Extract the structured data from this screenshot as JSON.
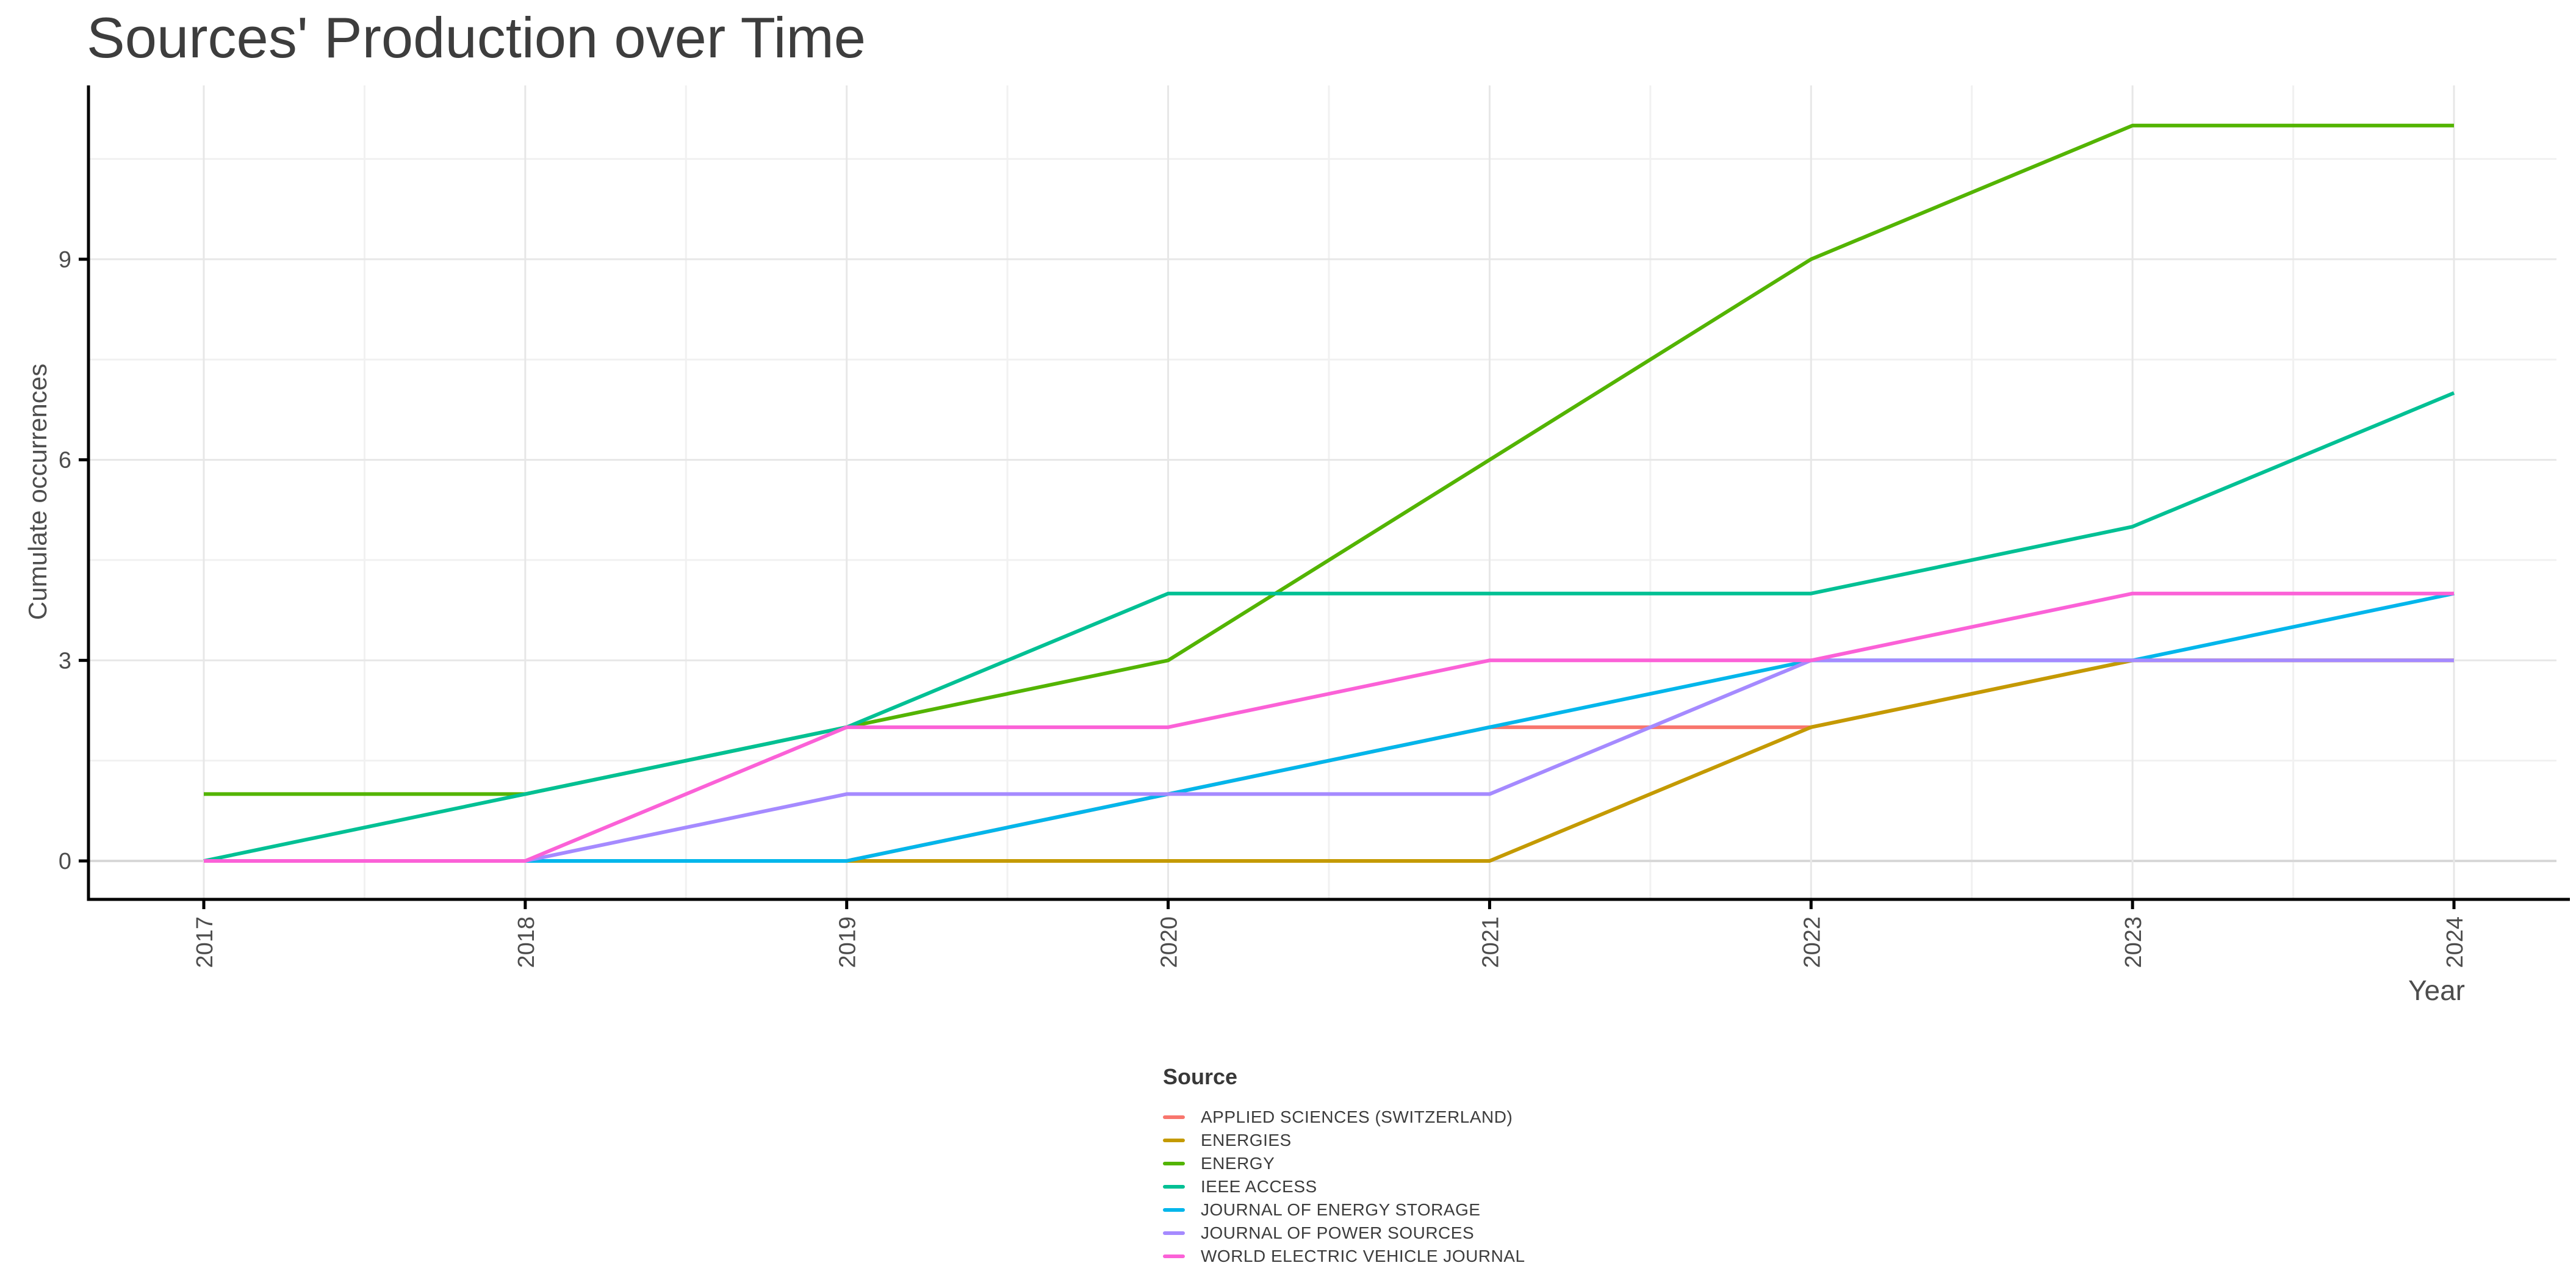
{
  "title": "Sources' Production over Time",
  "axes": {
    "x": {
      "label": "Year",
      "ticks": [
        "2017",
        "2018",
        "2019",
        "2020",
        "2021",
        "2022",
        "2023",
        "2024"
      ]
    },
    "y": {
      "label": "Cumulate occurrences",
      "ticks": [
        "0",
        "3",
        "6",
        "9"
      ]
    }
  },
  "legend": {
    "title": "Source",
    "items": [
      {
        "label": "APPLIED SCIENCES (SWITZERLAND)",
        "color": "#F8766D"
      },
      {
        "label": "ENERGIES",
        "color": "#C49A00"
      },
      {
        "label": "ENERGY",
        "color": "#53B400"
      },
      {
        "label": "IEEE ACCESS",
        "color": "#00C094"
      },
      {
        "label": "JOURNAL OF ENERGY STORAGE",
        "color": "#00B6EB"
      },
      {
        "label": "JOURNAL OF POWER SOURCES",
        "color": "#A58AFF"
      },
      {
        "label": "WORLD ELECTRIC VEHICLE JOURNAL",
        "color": "#FB61D7"
      }
    ]
  },
  "chart_data": {
    "type": "line",
    "title": "Sources' Production over Time",
    "xlabel": "Year",
    "ylabel": "Cumulate occurrences",
    "x": [
      2017,
      2018,
      2019,
      2020,
      2021,
      2022,
      2023,
      2024
    ],
    "yticks": [
      0,
      3,
      6,
      9
    ],
    "minor_yticks": [
      1.5,
      4.5,
      7.5,
      10.5
    ],
    "ylim": [
      0,
      11.6
    ],
    "grid": "major and minor, light gray on white",
    "legend_position": "bottom-center",
    "series": [
      {
        "name": "APPLIED SCIENCES (SWITZERLAND)",
        "color": "#F8766D",
        "values": [
          0,
          0,
          0,
          1,
          2,
          2,
          3,
          3
        ]
      },
      {
        "name": "ENERGIES",
        "color": "#C49A00",
        "values": [
          null,
          0,
          0,
          0,
          0,
          2,
          3,
          3
        ]
      },
      {
        "name": "ENERGY",
        "color": "#53B400",
        "values": [
          1,
          1,
          2,
          3,
          6,
          9,
          11,
          11
        ]
      },
      {
        "name": "IEEE ACCESS",
        "color": "#00C094",
        "values": [
          0,
          1,
          2,
          4,
          4,
          4,
          5,
          7
        ]
      },
      {
        "name": "JOURNAL OF ENERGY STORAGE",
        "color": "#00B6EB",
        "values": [
          null,
          0,
          0,
          1,
          2,
          3,
          3,
          4
        ]
      },
      {
        "name": "JOURNAL OF POWER SOURCES",
        "color": "#A58AFF",
        "values": [
          null,
          0,
          1,
          1,
          1,
          3,
          3,
          3
        ]
      },
      {
        "name": "WORLD ELECTRIC VEHICLE JOURNAL",
        "color": "#FB61D7",
        "values": [
          0,
          0,
          2,
          2,
          3,
          3,
          4,
          4
        ]
      }
    ]
  }
}
